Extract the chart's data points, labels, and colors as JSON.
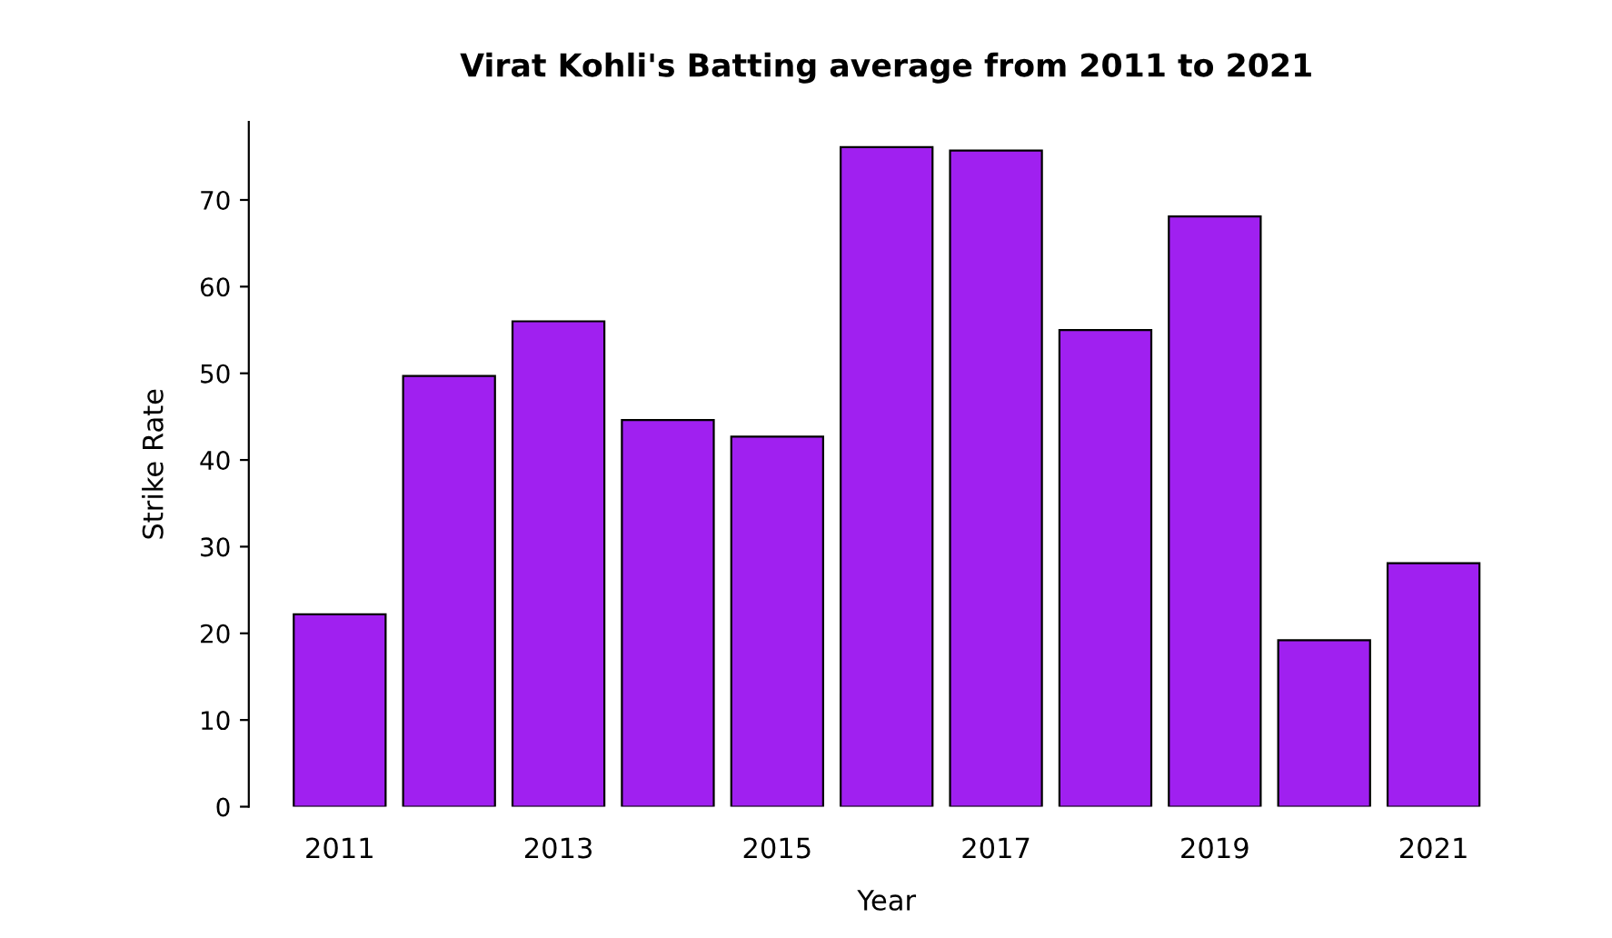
{
  "chart_data": {
    "type": "bar",
    "title": "Virat Kohli's Batting average from 2011 to 2021",
    "xlabel": "Year",
    "ylabel": "Strike Rate",
    "categories": [
      "2011",
      null,
      "2013",
      null,
      "2015",
      null,
      "2017",
      null,
      "2019",
      null,
      "2021"
    ],
    "values": [
      22.2,
      49.7,
      56.0,
      44.6,
      42.7,
      76.1,
      75.7,
      55.0,
      68.1,
      19.2,
      28.1
    ],
    "color": "#a020f0",
    "ylim": [
      0,
      79
    ],
    "yticks": [
      0,
      10,
      20,
      30,
      40,
      50,
      60,
      70
    ],
    "grid": false
  }
}
